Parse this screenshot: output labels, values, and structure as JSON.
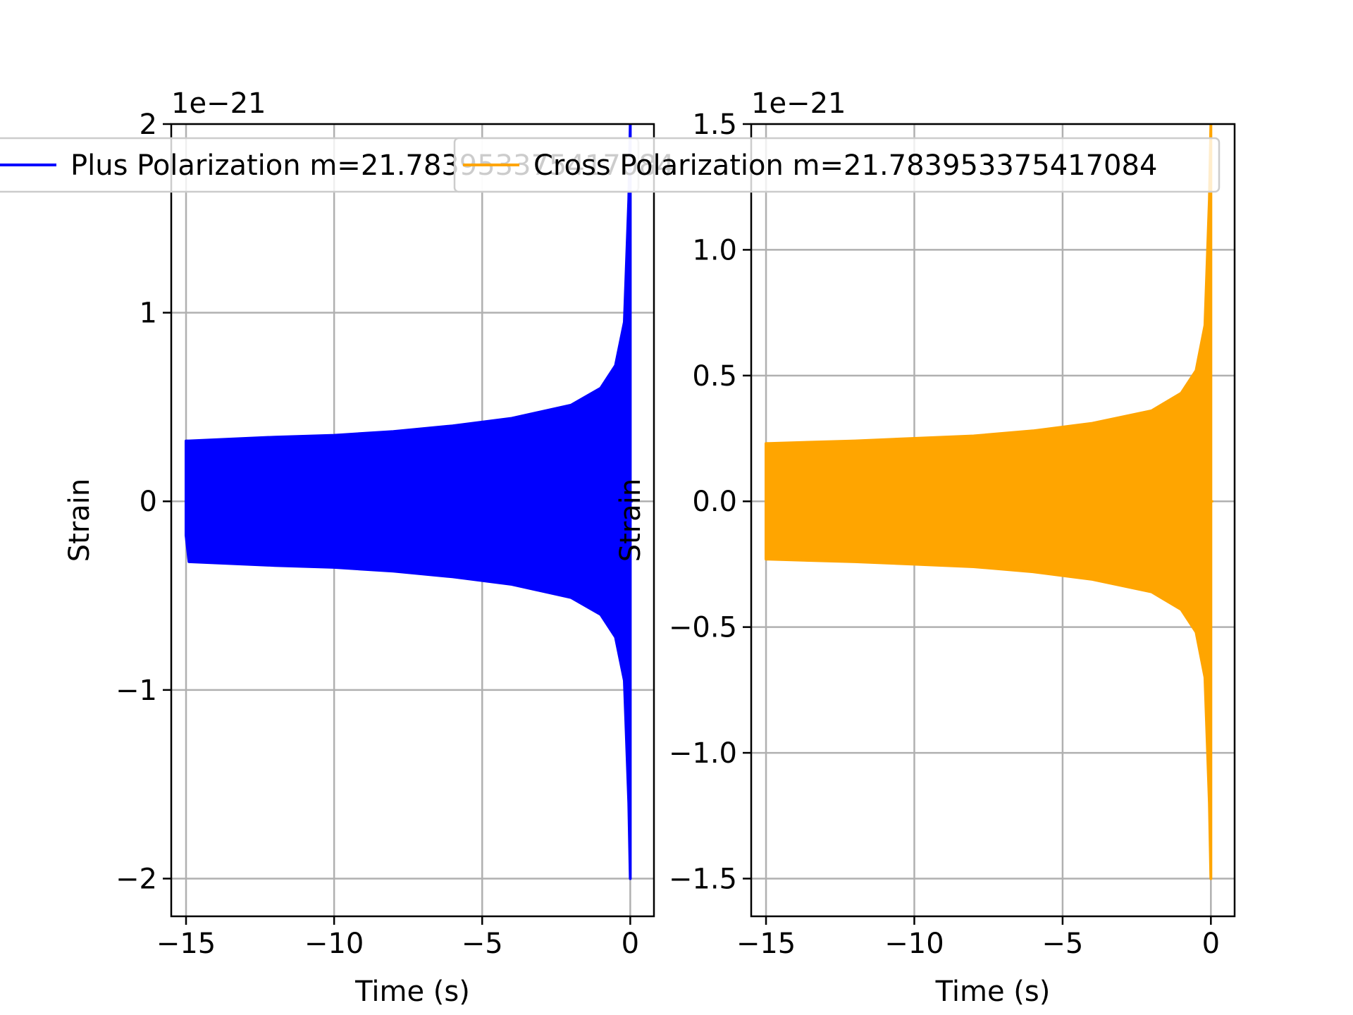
{
  "chart_data": [
    {
      "type": "line",
      "title": "",
      "xlabel": "Time (s)",
      "ylabel": "Strain",
      "offset_label": "1e−21",
      "xlim": [
        -15.5,
        0.8
      ],
      "ylim": [
        -2.2,
        2.0
      ],
      "xticks": [
        -15,
        -10,
        -5,
        0
      ],
      "xtick_labels": [
        "−15",
        "−10",
        "−5",
        "0"
      ],
      "yticks": [
        -2,
        -1,
        0,
        1,
        2
      ],
      "ytick_labels": [
        "−2",
        "−1",
        "0",
        "1",
        "2"
      ],
      "grid": true,
      "legend_position": "top-center",
      "series": [
        {
          "name": "Plus Polarization m=21.783953375417084",
          "color": "#0000ff",
          "envelope": {
            "t": [
              -15.0,
              -14.9,
              -12.0,
              -10.0,
              -8.0,
              -6.0,
              -4.0,
              -2.0,
              -1.0,
              -0.5,
              -0.2,
              -0.05,
              0.0
            ],
            "upper": [
              0.32,
              0.32,
              0.34,
              0.35,
              0.37,
              0.4,
              0.44,
              0.51,
              0.6,
              0.72,
              0.95,
              1.6,
              2.0
            ],
            "lower": [
              -0.18,
              -0.32,
              -0.34,
              -0.35,
              -0.37,
              -0.4,
              -0.44,
              -0.51,
              -0.6,
              -0.72,
              -0.95,
              -1.6,
              -2.0
            ]
          }
        }
      ]
    },
    {
      "type": "line",
      "title": "",
      "xlabel": "Time (s)",
      "ylabel": "Strain",
      "offset_label": "1e−21",
      "xlim": [
        -15.5,
        0.8
      ],
      "ylim": [
        -1.65,
        1.5
      ],
      "xticks": [
        -15,
        -10,
        -5,
        0
      ],
      "xtick_labels": [
        "−15",
        "−10",
        "−5",
        "0"
      ],
      "yticks": [
        -1.5,
        -1.0,
        -0.5,
        0.0,
        0.5,
        1.0,
        1.5
      ],
      "ytick_labels": [
        "−1.5",
        "−1.0",
        "−0.5",
        "0.0",
        "0.5",
        "1.0",
        "1.5"
      ],
      "grid": true,
      "legend_position": "top-center",
      "series": [
        {
          "name": "Cross Polarization m=21.783953375417084",
          "color": "#ffa500",
          "envelope": {
            "t": [
              -15.0,
              -14.9,
              -12.0,
              -10.0,
              -8.0,
              -6.0,
              -4.0,
              -2.0,
              -1.0,
              -0.5,
              -0.2,
              -0.05,
              0.0
            ],
            "upper": [
              0.23,
              0.23,
              0.24,
              0.25,
              0.26,
              0.28,
              0.31,
              0.36,
              0.43,
              0.52,
              0.7,
              1.2,
              1.5
            ],
            "lower": [
              -0.23,
              -0.23,
              -0.24,
              -0.25,
              -0.26,
              -0.28,
              -0.31,
              -0.36,
              -0.43,
              -0.52,
              -0.7,
              -1.2,
              -1.5
            ]
          }
        }
      ]
    }
  ]
}
